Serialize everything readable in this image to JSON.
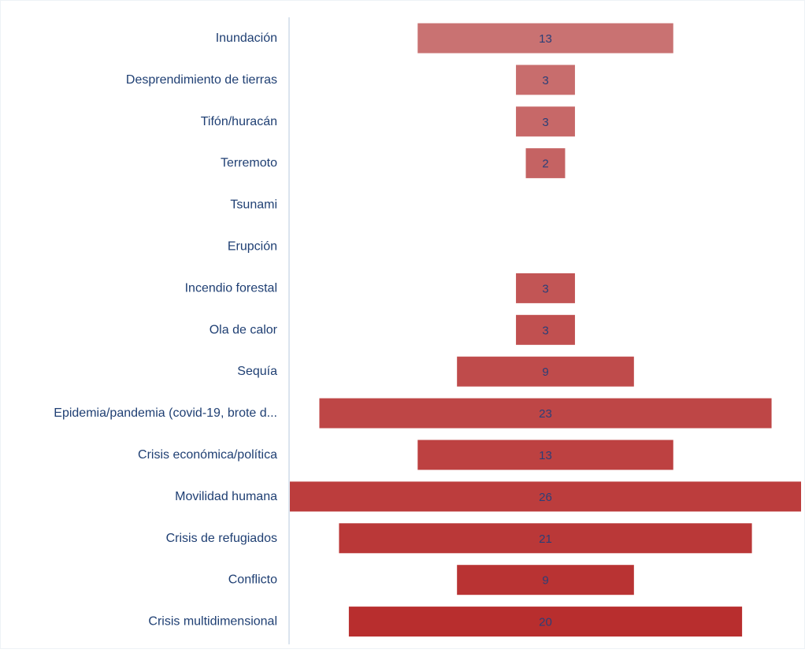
{
  "chart_data": {
    "type": "bar",
    "orientation": "horizontal",
    "layout": "centered-funnel",
    "categories": [
      "Inundación",
      "Desprendimiento de tierras",
      "Tifón/huracán",
      "Terremoto",
      "Tsunami",
      "Erupción",
      "Incendio forestal",
      "Ola de calor",
      "Sequía",
      "Epidemia/pandemia (covid-19, brote d...",
      "Crisis económica/política",
      "Movilidad humana",
      "Crisis de refugiados",
      "Conflicto",
      "Crisis multidimensional"
    ],
    "values": [
      13,
      3,
      3,
      2,
      null,
      null,
      3,
      3,
      9,
      23,
      13,
      26,
      21,
      9,
      20
    ],
    "data_labels": [
      "13",
      "3",
      "3",
      "2",
      "",
      "",
      "3",
      "3",
      "9",
      "23",
      "13",
      "26",
      "21",
      "9",
      "20"
    ],
    "xlim": [
      0,
      26
    ],
    "grid": false,
    "legend": "none",
    "colors": {
      "bar_min": "#c97272",
      "bar_max": "#b82e2e",
      "category_text": "#1f3f73",
      "value_text": "#2b3f78",
      "axis_line": "#cfdbe8"
    }
  }
}
